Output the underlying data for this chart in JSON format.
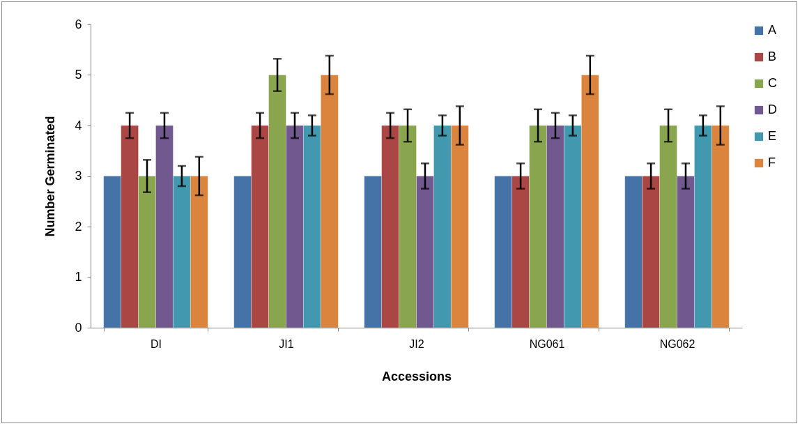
{
  "chart_data": {
    "type": "bar",
    "xlabel": "Accessions",
    "ylabel": "Number Germinated",
    "categories": [
      "DI",
      "JI1",
      "JI2",
      "NG061",
      "NG062"
    ],
    "series": [
      {
        "name": "A",
        "color": "#4572a7",
        "values": [
          3,
          3,
          3,
          3,
          3
        ]
      },
      {
        "name": "B",
        "color": "#aa4643",
        "values": [
          4,
          4,
          4,
          3,
          3
        ],
        "errors": [
          0.25,
          0.25,
          0.25,
          0.25,
          0.25
        ]
      },
      {
        "name": "C",
        "color": "#89a54e",
        "values": [
          3,
          5,
          4,
          4,
          4
        ],
        "errors": [
          0.32,
          0.32,
          0.32,
          0.32,
          0.32
        ]
      },
      {
        "name": "D",
        "color": "#71588f",
        "values": [
          4,
          4,
          3,
          4,
          3
        ],
        "errors": [
          0.25,
          0.25,
          0.25,
          0.25,
          0.25
        ]
      },
      {
        "name": "E",
        "color": "#4198af",
        "values": [
          3,
          4,
          4,
          4,
          4
        ],
        "errors": [
          0.2,
          0.2,
          0.2,
          0.2,
          0.2
        ]
      },
      {
        "name": "F",
        "color": "#db843d",
        "values": [
          3,
          5,
          4,
          5,
          4
        ],
        "errors": [
          0.38,
          0.38,
          0.38,
          0.38,
          0.38
        ]
      }
    ],
    "ylim": [
      0,
      6
    ],
    "yticks": [
      0,
      1,
      2,
      3,
      4,
      5,
      6
    ],
    "grid": false,
    "legend": "right"
  }
}
